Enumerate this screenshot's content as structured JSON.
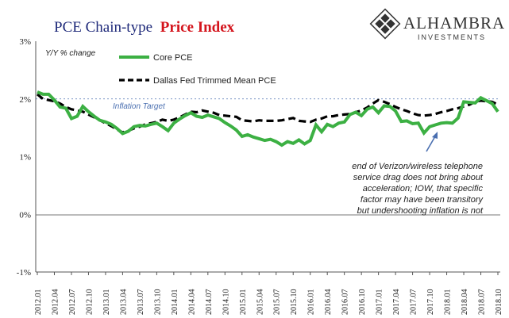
{
  "title": {
    "part1": "PCE Chain-type",
    "part2": "Price Index"
  },
  "logo": {
    "name": "ALHAMBRA",
    "subtitle": "INVESTMENTS"
  },
  "chart_data": {
    "type": "line",
    "ylabel": "Y/Y % change",
    "ylim": [
      -1,
      3
    ],
    "yticks": [
      "3%",
      "2%",
      "1%",
      "0%",
      "-1%"
    ],
    "y_tick_values": [
      3,
      2,
      1,
      0,
      -1
    ],
    "x": [
      "2012.01",
      "2012.02",
      "2012.03",
      "2012.04",
      "2012.05",
      "2012.06",
      "2012.07",
      "2012.08",
      "2012.09",
      "2012.10",
      "2012.11",
      "2012.12",
      "2013.01",
      "2013.02",
      "2013.03",
      "2013.04",
      "2013.05",
      "2013.06",
      "2013.07",
      "2013.08",
      "2013.09",
      "2013.10",
      "2013.11",
      "2013.12",
      "2014.01",
      "2014.02",
      "2014.03",
      "2014.04",
      "2014.05",
      "2014.06",
      "2014.07",
      "2014.08",
      "2014.09",
      "2014.10",
      "2014.11",
      "2014.12",
      "2015.01",
      "2015.02",
      "2015.03",
      "2015.04",
      "2015.05",
      "2015.06",
      "2015.07",
      "2015.08",
      "2015.09",
      "2015.10",
      "2015.11",
      "2015.12",
      "2016.01",
      "2016.02",
      "2016.03",
      "2016.04",
      "2016.05",
      "2016.06",
      "2016.07",
      "2016.08",
      "2016.09",
      "2016.10",
      "2016.11",
      "2016.12",
      "2017.01",
      "2017.02",
      "2017.03",
      "2017.04",
      "2017.05",
      "2017.06",
      "2017.07",
      "2017.08",
      "2017.09",
      "2017.10",
      "2017.11",
      "2017.12",
      "2018.01",
      "2018.02",
      "2018.03",
      "2018.04",
      "2018.05",
      "2018.06",
      "2018.07",
      "2018.08",
      "2018.09",
      "2018.10"
    ],
    "x_tick_labels": [
      "2012.01",
      "2012.04",
      "2012.07",
      "2012.10",
      "2013.01",
      "2013.04",
      "2013.07",
      "2013.10",
      "2014.01",
      "2014.04",
      "2014.07",
      "2014.10",
      "2015.01",
      "2015.04",
      "2015.07",
      "2015.10",
      "2016.01",
      "2016.04",
      "2016.07",
      "2016.10",
      "2017.01",
      "2017.04",
      "2017.07",
      "2017.10",
      "2018.01",
      "2018.04",
      "2018.07",
      "2018.10"
    ],
    "series": [
      {
        "name": "Core PCE",
        "color": "#3cb043",
        "style": "solid",
        "values": [
          2.12,
          2.08,
          2.08,
          1.98,
          1.86,
          1.84,
          1.66,
          1.7,
          1.87,
          1.78,
          1.7,
          1.63,
          1.6,
          1.56,
          1.49,
          1.4,
          1.44,
          1.52,
          1.54,
          1.53,
          1.56,
          1.58,
          1.52,
          1.45,
          1.58,
          1.65,
          1.71,
          1.76,
          1.7,
          1.68,
          1.72,
          1.69,
          1.66,
          1.59,
          1.53,
          1.46,
          1.35,
          1.38,
          1.34,
          1.31,
          1.28,
          1.3,
          1.26,
          1.2,
          1.26,
          1.23,
          1.29,
          1.22,
          1.28,
          1.55,
          1.43,
          1.56,
          1.52,
          1.58,
          1.6,
          1.73,
          1.77,
          1.71,
          1.82,
          1.86,
          1.76,
          1.88,
          1.87,
          1.79,
          1.61,
          1.62,
          1.57,
          1.58,
          1.41,
          1.52,
          1.55,
          1.58,
          1.59,
          1.58,
          1.67,
          1.95,
          1.94,
          1.93,
          2.02,
          1.97,
          1.92,
          1.78
        ]
      },
      {
        "name": "Dallas Fed Trimmed Mean PCE",
        "color": "#000000",
        "style": "dashed",
        "values": [
          2.08,
          2.0,
          1.98,
          1.96,
          1.92,
          1.86,
          1.82,
          1.8,
          1.78,
          1.73,
          1.68,
          1.63,
          1.58,
          1.53,
          1.47,
          1.42,
          1.45,
          1.49,
          1.52,
          1.56,
          1.58,
          1.6,
          1.64,
          1.62,
          1.64,
          1.68,
          1.73,
          1.78,
          1.77,
          1.8,
          1.78,
          1.76,
          1.72,
          1.71,
          1.7,
          1.69,
          1.63,
          1.62,
          1.61,
          1.63,
          1.62,
          1.62,
          1.62,
          1.63,
          1.65,
          1.67,
          1.62,
          1.61,
          1.6,
          1.64,
          1.66,
          1.7,
          1.7,
          1.72,
          1.73,
          1.74,
          1.77,
          1.8,
          1.85,
          1.92,
          1.98,
          1.95,
          1.91,
          1.86,
          1.82,
          1.79,
          1.75,
          1.72,
          1.71,
          1.72,
          1.74,
          1.77,
          1.79,
          1.82,
          1.84,
          1.87,
          1.9,
          1.95,
          1.97,
          1.96,
          1.95,
          1.9
        ]
      }
    ],
    "reference_line": {
      "label": "Inflation Target",
      "y": 2
    },
    "annotation": {
      "lines": [
        "end of Verizon/wireless telephone",
        "service drag does not bring about",
        "acceleration; IOW, that specific",
        "factor may have been transitory",
        "but undershooting inflation is not"
      ],
      "arrow_target": "2018.03"
    },
    "legend_position": "top-left",
    "grid": false
  }
}
